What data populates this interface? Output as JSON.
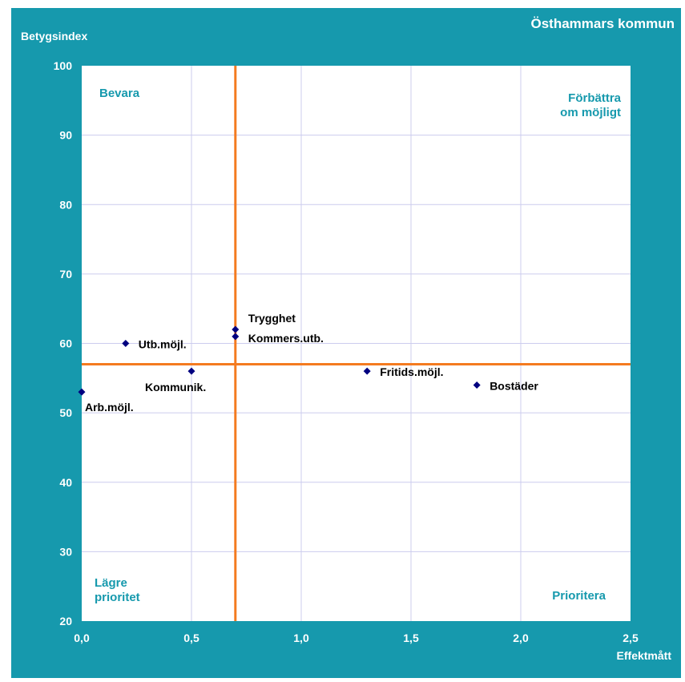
{
  "header": {
    "title": "Östhammars kommun"
  },
  "chart_data": {
    "type": "scatter",
    "title": "Östhammars kommun",
    "xlabel": "Effektmått",
    "ylabel": "Betygsindex",
    "xlim": [
      0,
      2.5
    ],
    "ylim": [
      20,
      100
    ],
    "x_ticks": [
      "0,0",
      "0,5",
      "1,0",
      "1,5",
      "2,0",
      "2,5"
    ],
    "y_ticks": [
      "20",
      "30",
      "40",
      "50",
      "60",
      "70",
      "80",
      "90",
      "100"
    ],
    "grid": true,
    "points": [
      {
        "label": "Arb.möjl.",
        "x": 0.0,
        "y": 53
      },
      {
        "label": "Utb.möjl.",
        "x": 0.2,
        "y": 60
      },
      {
        "label": "Kommunik.",
        "x": 0.5,
        "y": 56
      },
      {
        "label": "Trygghet",
        "x": 0.7,
        "y": 62
      },
      {
        "label": "Kommers.utb.",
        "x": 0.7,
        "y": 61
      },
      {
        "label": "Fritids.möjl.",
        "x": 1.3,
        "y": 56
      },
      {
        "label": "Bostäder",
        "x": 1.8,
        "y": 54
      }
    ],
    "reference_lines": {
      "x": 0.7,
      "y": 57
    },
    "quadrant_labels": {
      "top_left": [
        "Bevara"
      ],
      "top_right": [
        "Förbättra",
        "om möjligt"
      ],
      "bottom_left": [
        "Lägre",
        "prioritet"
      ],
      "bottom_right": [
        "Prioritera"
      ]
    },
    "colors": {
      "background": "#1699ad",
      "plot_area": "#ffffff",
      "grid": "#ccccee",
      "marker": "#000080",
      "reference_line": "#f47b20",
      "quadrant_text": "#1699ad",
      "tick_text": "#ffffff"
    }
  }
}
